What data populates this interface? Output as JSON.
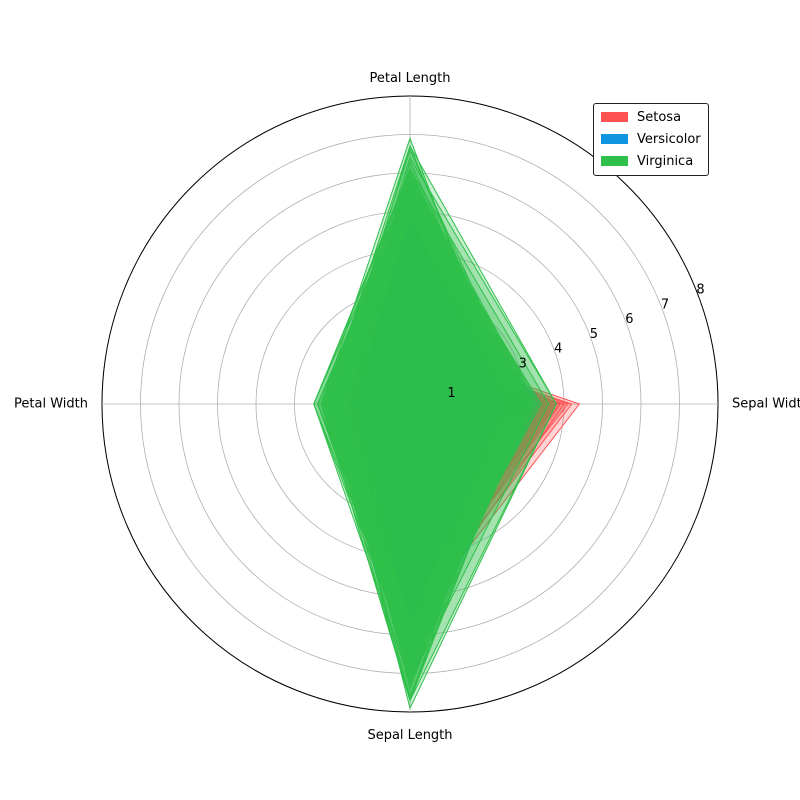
{
  "chart_data": {
    "type": "radar",
    "axes": [
      "Sepal Width",
      "Petal Length",
      "Petal Width",
      "Sepal Length"
    ],
    "radial_ticks": [
      "1",
      "3",
      "4",
      "5",
      "6",
      "7",
      "8"
    ],
    "radial_tick_values": [
      1,
      3,
      4,
      5,
      6,
      7,
      8
    ],
    "grid": true,
    "legend_position": "top-right",
    "series": [
      {
        "name": "Setosa",
        "color": "#ff5252",
        "samples": [
          [
            3.5,
            1.4,
            0.2,
            5.1
          ],
          [
            3.0,
            1.4,
            0.2,
            4.9
          ],
          [
            3.2,
            1.3,
            0.2,
            4.7
          ],
          [
            3.1,
            1.5,
            0.2,
            4.6
          ],
          [
            3.6,
            1.4,
            0.2,
            5.0
          ],
          [
            3.9,
            1.7,
            0.4,
            5.4
          ],
          [
            3.4,
            1.4,
            0.3,
            4.6
          ],
          [
            3.4,
            1.5,
            0.2,
            5.0
          ],
          [
            2.9,
            1.4,
            0.2,
            4.4
          ],
          [
            3.1,
            1.5,
            0.1,
            4.9
          ],
          [
            3.7,
            1.5,
            0.2,
            5.4
          ],
          [
            3.4,
            1.6,
            0.2,
            4.8
          ],
          [
            3.0,
            1.4,
            0.1,
            4.8
          ],
          [
            3.0,
            1.1,
            0.1,
            4.3
          ],
          [
            4.0,
            1.2,
            0.2,
            5.8
          ],
          [
            4.4,
            1.5,
            0.4,
            5.7
          ],
          [
            3.9,
            1.3,
            0.4,
            5.4
          ],
          [
            3.5,
            1.4,
            0.3,
            5.1
          ],
          [
            3.8,
            1.7,
            0.3,
            5.7
          ],
          [
            3.8,
            1.5,
            0.3,
            5.1
          ],
          [
            3.4,
            1.7,
            0.2,
            5.4
          ],
          [
            3.7,
            1.5,
            0.4,
            5.1
          ],
          [
            3.6,
            1.0,
            0.2,
            4.6
          ],
          [
            3.3,
            1.7,
            0.5,
            5.1
          ],
          [
            3.4,
            1.9,
            0.2,
            4.8
          ],
          [
            3.0,
            1.6,
            0.2,
            5.0
          ],
          [
            3.4,
            1.6,
            0.4,
            5.0
          ],
          [
            3.5,
            1.5,
            0.2,
            5.2
          ],
          [
            3.4,
            1.4,
            0.2,
            5.2
          ],
          [
            3.2,
            1.6,
            0.2,
            4.7
          ],
          [
            3.1,
            1.6,
            0.2,
            4.8
          ],
          [
            3.4,
            1.5,
            0.4,
            5.4
          ],
          [
            4.1,
            1.5,
            0.1,
            5.2
          ],
          [
            4.2,
            1.4,
            0.2,
            5.5
          ],
          [
            3.1,
            1.5,
            0.2,
            4.9
          ],
          [
            3.2,
            1.2,
            0.2,
            5.0
          ],
          [
            3.5,
            1.3,
            0.2,
            5.5
          ],
          [
            3.6,
            1.4,
            0.1,
            4.9
          ],
          [
            3.0,
            1.3,
            0.2,
            4.4
          ],
          [
            3.4,
            1.5,
            0.2,
            5.1
          ],
          [
            3.5,
            1.3,
            0.3,
            5.0
          ],
          [
            2.3,
            1.3,
            0.3,
            4.5
          ],
          [
            3.2,
            1.3,
            0.2,
            4.4
          ],
          [
            3.5,
            1.6,
            0.6,
            5.0
          ],
          [
            3.8,
            1.9,
            0.4,
            5.1
          ],
          [
            3.0,
            1.4,
            0.3,
            4.8
          ],
          [
            3.8,
            1.6,
            0.2,
            5.1
          ],
          [
            3.2,
            1.4,
            0.2,
            4.6
          ],
          [
            3.7,
            1.5,
            0.2,
            5.3
          ],
          [
            3.3,
            1.4,
            0.2,
            5.0
          ]
        ]
      },
      {
        "name": "Versicolor",
        "color": "#1096e0",
        "samples": [
          [
            3.2,
            4.7,
            1.4,
            7.0
          ],
          [
            3.2,
            4.5,
            1.5,
            6.4
          ],
          [
            3.1,
            4.9,
            1.5,
            6.9
          ],
          [
            2.3,
            4.0,
            1.3,
            5.5
          ],
          [
            2.8,
            4.6,
            1.5,
            6.5
          ],
          [
            2.8,
            4.5,
            1.3,
            5.7
          ],
          [
            3.3,
            4.7,
            1.6,
            6.3
          ],
          [
            2.4,
            3.3,
            1.0,
            4.9
          ],
          [
            2.9,
            4.6,
            1.3,
            6.6
          ],
          [
            2.7,
            3.9,
            1.4,
            5.2
          ],
          [
            2.0,
            3.5,
            1.0,
            5.0
          ],
          [
            3.0,
            4.2,
            1.5,
            5.9
          ],
          [
            2.2,
            4.0,
            1.0,
            6.0
          ],
          [
            2.9,
            4.7,
            1.4,
            6.1
          ],
          [
            2.9,
            3.6,
            1.3,
            5.6
          ],
          [
            3.1,
            4.4,
            1.4,
            6.7
          ],
          [
            3.0,
            4.5,
            1.5,
            5.6
          ],
          [
            2.7,
            4.1,
            1.0,
            5.8
          ],
          [
            2.2,
            4.5,
            1.5,
            6.2
          ],
          [
            2.5,
            3.9,
            1.1,
            5.6
          ],
          [
            3.2,
            4.8,
            1.8,
            5.9
          ],
          [
            2.8,
            4.0,
            1.3,
            6.1
          ],
          [
            2.5,
            4.9,
            1.5,
            6.3
          ],
          [
            2.8,
            4.7,
            1.2,
            6.1
          ],
          [
            2.9,
            4.3,
            1.3,
            6.4
          ],
          [
            3.0,
            4.4,
            1.4,
            6.6
          ],
          [
            2.8,
            4.8,
            1.4,
            6.8
          ],
          [
            3.0,
            5.0,
            1.7,
            6.7
          ],
          [
            2.9,
            4.5,
            1.5,
            6.0
          ],
          [
            2.6,
            3.5,
            1.0,
            5.7
          ],
          [
            2.4,
            3.8,
            1.1,
            5.5
          ],
          [
            2.4,
            3.7,
            1.0,
            5.5
          ],
          [
            2.7,
            3.9,
            1.2,
            5.8
          ],
          [
            2.7,
            5.1,
            1.6,
            6.0
          ],
          [
            3.0,
            4.5,
            1.5,
            5.4
          ],
          [
            3.4,
            4.5,
            1.6,
            6.0
          ],
          [
            3.1,
            4.7,
            1.5,
            6.7
          ],
          [
            2.3,
            4.4,
            1.3,
            6.3
          ],
          [
            3.0,
            4.1,
            1.3,
            5.6
          ],
          [
            2.5,
            4.0,
            1.3,
            5.5
          ],
          [
            2.6,
            4.4,
            1.2,
            5.5
          ],
          [
            3.0,
            4.6,
            1.4,
            6.1
          ],
          [
            2.6,
            4.0,
            1.2,
            5.8
          ],
          [
            2.3,
            3.3,
            1.0,
            5.0
          ],
          [
            2.7,
            4.2,
            1.3,
            5.6
          ],
          [
            3.0,
            4.2,
            1.2,
            5.7
          ],
          [
            2.9,
            4.2,
            1.3,
            5.7
          ],
          [
            2.9,
            4.3,
            1.3,
            6.2
          ],
          [
            2.5,
            3.0,
            1.1,
            5.1
          ],
          [
            2.8,
            4.1,
            1.3,
            5.7
          ]
        ]
      },
      {
        "name": "Virginica",
        "color": "#2fc04a",
        "samples": [
          [
            3.3,
            6.0,
            2.5,
            6.3
          ],
          [
            2.7,
            5.1,
            1.9,
            5.8
          ],
          [
            3.0,
            5.9,
            2.1,
            7.1
          ],
          [
            2.9,
            5.6,
            1.8,
            6.3
          ],
          [
            3.0,
            5.8,
            2.2,
            6.5
          ],
          [
            3.0,
            6.6,
            2.1,
            7.6
          ],
          [
            2.5,
            4.5,
            1.7,
            4.9
          ],
          [
            2.9,
            6.3,
            1.8,
            7.3
          ],
          [
            2.5,
            5.8,
            1.8,
            6.7
          ],
          [
            3.6,
            6.1,
            2.5,
            7.2
          ],
          [
            3.2,
            5.1,
            2.0,
            6.5
          ],
          [
            2.7,
            5.3,
            1.9,
            6.4
          ],
          [
            3.0,
            5.5,
            2.1,
            6.8
          ],
          [
            2.5,
            5.0,
            2.0,
            5.7
          ],
          [
            2.8,
            5.1,
            2.4,
            5.8
          ],
          [
            3.2,
            5.3,
            2.3,
            6.4
          ],
          [
            3.0,
            5.5,
            1.8,
            6.5
          ],
          [
            3.8,
            6.7,
            2.2,
            7.7
          ],
          [
            2.6,
            6.9,
            2.3,
            7.7
          ],
          [
            2.2,
            5.0,
            1.5,
            6.0
          ],
          [
            3.2,
            5.7,
            2.3,
            6.9
          ],
          [
            2.8,
            4.9,
            2.0,
            5.6
          ],
          [
            2.8,
            6.7,
            2.0,
            7.7
          ],
          [
            2.7,
            4.9,
            1.8,
            6.3
          ],
          [
            3.3,
            5.7,
            2.1,
            6.7
          ],
          [
            3.2,
            6.0,
            1.8,
            7.2
          ],
          [
            2.8,
            4.8,
            1.8,
            6.2
          ],
          [
            3.0,
            4.9,
            1.8,
            6.1
          ],
          [
            2.8,
            5.6,
            2.1,
            6.4
          ],
          [
            3.0,
            5.8,
            1.6,
            7.2
          ],
          [
            2.8,
            6.1,
            1.9,
            7.4
          ],
          [
            3.8,
            6.4,
            2.0,
            7.9
          ],
          [
            2.8,
            5.6,
            2.2,
            6.4
          ],
          [
            2.8,
            5.1,
            1.5,
            6.3
          ],
          [
            2.6,
            5.6,
            1.4,
            6.1
          ],
          [
            3.0,
            6.1,
            2.3,
            7.7
          ],
          [
            3.4,
            5.6,
            2.4,
            6.3
          ],
          [
            3.1,
            5.5,
            1.8,
            6.4
          ],
          [
            3.0,
            4.8,
            1.8,
            6.0
          ],
          [
            3.1,
            5.4,
            2.1,
            6.9
          ],
          [
            3.1,
            5.6,
            2.4,
            6.7
          ],
          [
            3.1,
            5.1,
            2.3,
            6.9
          ],
          [
            2.7,
            5.1,
            1.9,
            5.8
          ],
          [
            3.2,
            5.9,
            2.3,
            6.8
          ],
          [
            3.3,
            5.7,
            2.5,
            6.7
          ],
          [
            3.0,
            5.2,
            2.3,
            6.7
          ],
          [
            2.5,
            5.0,
            1.9,
            6.3
          ],
          [
            3.0,
            5.2,
            2.0,
            6.5
          ],
          [
            3.4,
            5.4,
            2.3,
            6.2
          ],
          [
            3.0,
            5.1,
            1.8,
            5.9
          ]
        ]
      }
    ]
  }
}
